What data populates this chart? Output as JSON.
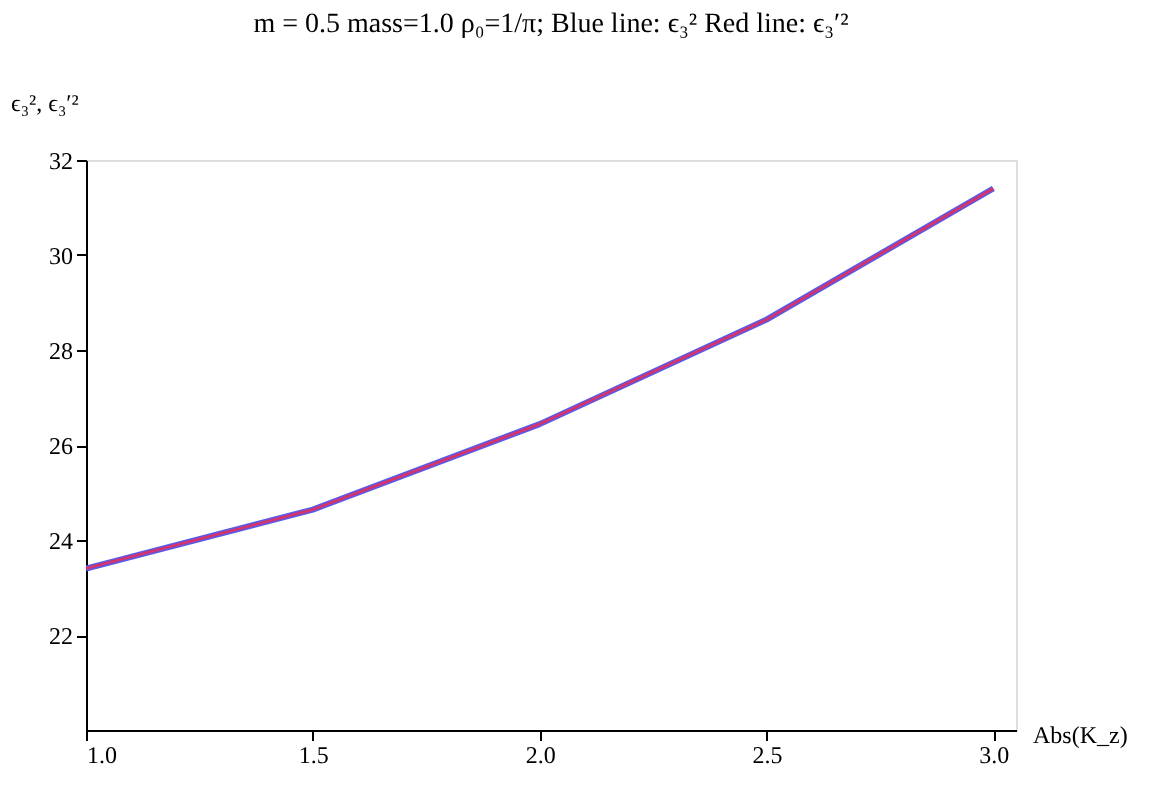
{
  "chart_data": {
    "type": "line",
    "title": "m = 0.5  mass=1.0  ρ₀=1/π;    Blue line: ϵ₃²  Red line: ϵ₃′²",
    "xlabel": "Abs(K_z)",
    "ylabel": "ϵ₃²,  ϵ₃′²",
    "x": [
      1.0,
      1.5,
      2.0,
      2.5,
      3.0
    ],
    "series": [
      {
        "color": "#5a5ae6",
        "values": [
          23.4,
          24.64,
          26.44,
          28.64,
          31.4
        ]
      },
      {
        "color": "#d6336c",
        "values": [
          23.4,
          24.64,
          26.44,
          28.64,
          31.4
        ]
      }
    ],
    "xlim": [
      1.0,
      3.05
    ],
    "ylim": [
      20,
      32
    ],
    "xticks": [
      {
        "value": 1,
        "label": "1.0"
      },
      1.5,
      {
        "value": 2,
        "label": "2.0"
      },
      2.5,
      {
        "value": 3,
        "label": "3.0"
      }
    ],
    "yticks": [
      22,
      24,
      26,
      28,
      30,
      32
    ],
    "grid": false,
    "marker": "none",
    "line_style": "solid"
  }
}
